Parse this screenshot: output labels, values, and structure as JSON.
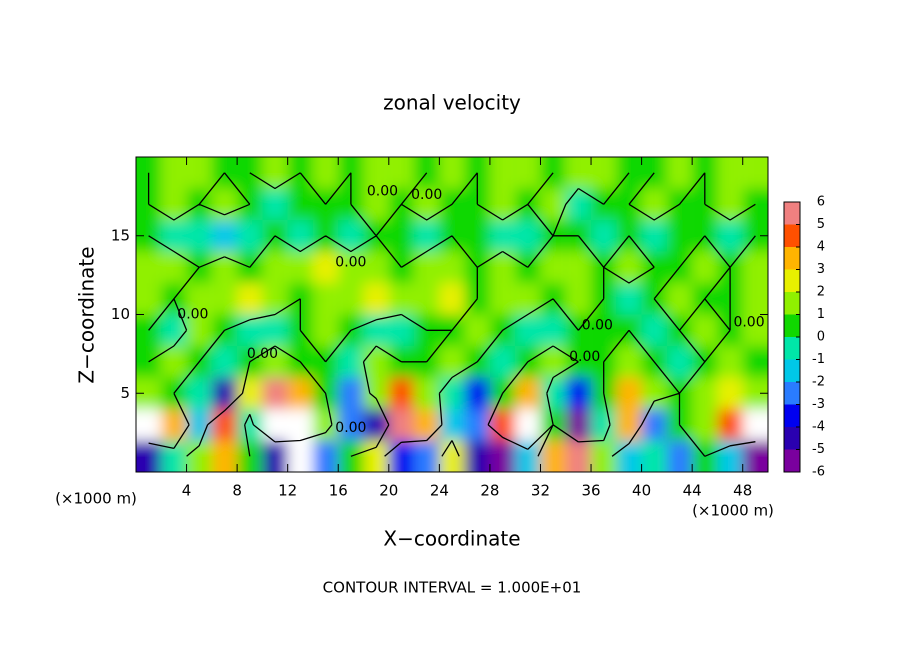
{
  "chart_data": {
    "type": "contour",
    "title": "zonal velocity",
    "x_label": "X−coordinate",
    "y_label": "Z−coordinate",
    "x_unit": "(×1000 m)",
    "footnote": "CONTOUR INTERVAL = 1.000E+01",
    "xlim": [
      0,
      50
    ],
    "ylim": [
      0,
      20
    ],
    "xticks": [
      4,
      8,
      12,
      16,
      20,
      24,
      28,
      32,
      36,
      40,
      44,
      48
    ],
    "yticks": [
      5,
      10,
      15
    ],
    "x": [
      1,
      3,
      5,
      7,
      9,
      11,
      13,
      15,
      17,
      19,
      21,
      23,
      25,
      27,
      29,
      31,
      33,
      35,
      37,
      39,
      41,
      43,
      45,
      47,
      49
    ],
    "z_levels": [
      1,
      3,
      5,
      7,
      9,
      11,
      13,
      15,
      17,
      19
    ],
    "values": [
      [
        -5,
        -1,
        1,
        3,
        0,
        -5,
        -7,
        -3,
        0,
        2,
        -4,
        -3,
        2,
        -5,
        -6,
        -2,
        3,
        5,
        1,
        -2,
        -1,
        -3,
        0,
        -2,
        -6
      ],
      [
        7,
        3,
        -2,
        4,
        -1,
        6,
        7,
        1,
        -3,
        -5,
        5,
        3,
        -2,
        -3,
        4,
        7,
        0,
        -6,
        -1,
        3,
        -3,
        0,
        1,
        4,
        7
      ],
      [
        1,
        0,
        -1,
        -5,
        2,
        5,
        3,
        0,
        -3,
        1,
        4,
        1,
        -1,
        -4,
        0,
        3,
        -1,
        -4,
        0,
        3,
        1,
        0,
        1,
        2,
        1
      ],
      [
        0,
        1,
        0,
        -1,
        0,
        1,
        0,
        0,
        -1,
        1,
        0,
        0,
        1,
        0,
        -1,
        0,
        1,
        0,
        0,
        1,
        0,
        -1,
        0,
        1,
        0
      ],
      [
        0,
        -1,
        1,
        0,
        -1,
        -1,
        0,
        1,
        0,
        -1,
        -1,
        0,
        0,
        1,
        0,
        -1,
        -1,
        0,
        0,
        0,
        -1,
        0,
        1,
        0,
        1
      ],
      [
        1,
        0,
        1,
        1,
        2,
        1,
        0,
        1,
        1,
        2,
        1,
        1,
        2,
        0,
        1,
        1,
        0,
        1,
        0,
        -1,
        0,
        1,
        0,
        0,
        1
      ],
      [
        1,
        1,
        0,
        1,
        0,
        1,
        1,
        2,
        1,
        1,
        0,
        1,
        1,
        0,
        1,
        0,
        1,
        1,
        0,
        1,
        0,
        0,
        1,
        0,
        1
      ],
      [
        0,
        -1,
        -1,
        -2,
        -1,
        0,
        -1,
        0,
        -1,
        0,
        0,
        -1,
        0,
        0,
        -1,
        -1,
        0,
        0,
        -1,
        0,
        -1,
        0,
        0,
        -1,
        0
      ],
      [
        0,
        1,
        0,
        1,
        0,
        -1,
        0,
        0,
        0,
        1,
        0,
        1,
        0,
        0,
        1,
        0,
        1,
        -1,
        0,
        0,
        1,
        0,
        0,
        1,
        0
      ],
      [
        0,
        1,
        1,
        0,
        0,
        1,
        0,
        1,
        0,
        1,
        1,
        0,
        1,
        0,
        1,
        1,
        0,
        1,
        1,
        0,
        0,
        1,
        0,
        1,
        1
      ]
    ],
    "colorbar_ticks": [
      -6,
      -5,
      -4,
      -3,
      -2,
      -1,
      0,
      1,
      2,
      3,
      4,
      5,
      6
    ],
    "colors": [
      "#7a009e",
      "#2a00b0",
      "#0000f0",
      "#2a7cff",
      "#00c8e8",
      "#00e6a8",
      "#10d800",
      "#90f000",
      "#e8f000",
      "#ffb400",
      "#ff5000",
      "#f08080"
    ],
    "out_of_range_color": "#ffffff",
    "contour_level": {
      "value": 0,
      "label": "0.00"
    },
    "contour_color": "#000000"
  }
}
